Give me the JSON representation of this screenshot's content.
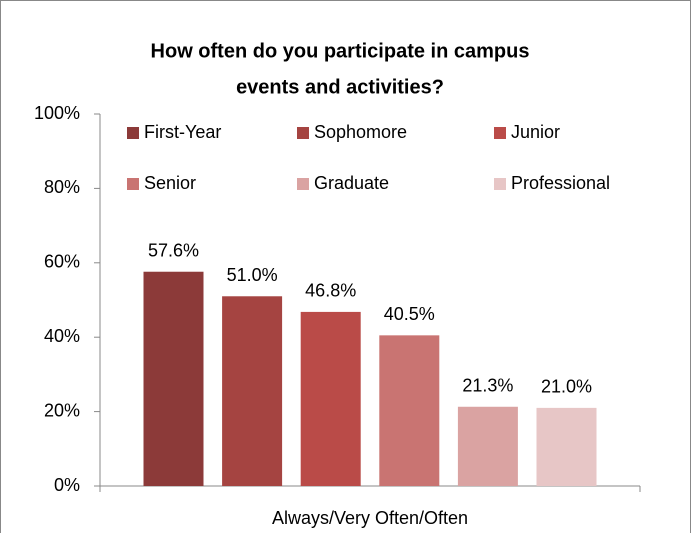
{
  "chart_data": {
    "type": "bar",
    "title": [
      "How often do you participate in campus",
      "events and activities?"
    ],
    "categories": [
      "Always/Very Often/Often"
    ],
    "series": [
      {
        "name": "First-Year",
        "color": "#8c3a39",
        "values": [
          57.6
        ],
        "value_labels": [
          "57.6%"
        ]
      },
      {
        "name": "Sophomore",
        "color": "#a54441",
        "values": [
          51.0
        ],
        "value_labels": [
          "51.0%"
        ]
      },
      {
        "name": "Junior",
        "color": "#ba4b48",
        "values": [
          46.8
        ],
        "value_labels": [
          "46.8%"
        ]
      },
      {
        "name": "Senior",
        "color": "#c97472",
        "values": [
          40.5
        ],
        "value_labels": [
          "40.5%"
        ]
      },
      {
        "name": "Graduate",
        "color": "#daa3a2",
        "values": [
          21.3
        ],
        "value_labels": [
          "21.3%"
        ]
      },
      {
        "name": "Professional",
        "color": "#e7c6c6",
        "values": [
          21.0
        ],
        "value_labels": [
          "21.0%"
        ]
      }
    ],
    "ylim": [
      0,
      100
    ],
    "yticks": [
      {
        "value": 0,
        "label": "0%"
      },
      {
        "value": 20,
        "label": "20%"
      },
      {
        "value": 40,
        "label": "40%"
      },
      {
        "value": 60,
        "label": "60%"
      },
      {
        "value": 80,
        "label": "80%"
      },
      {
        "value": 100,
        "label": "100%"
      }
    ],
    "legend": "top"
  }
}
